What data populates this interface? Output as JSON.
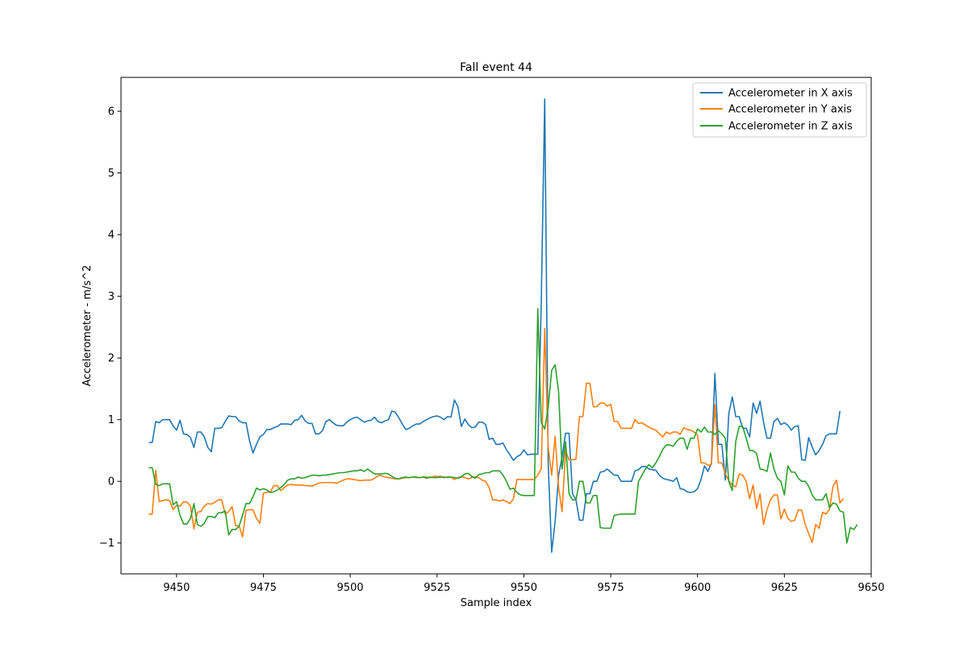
{
  "chart_data": {
    "type": "line",
    "title": "Fall event 44",
    "xlabel": "Sample index",
    "ylabel": "Accelerometer - m/s^2",
    "xlim": [
      9434,
      9650
    ],
    "ylim": [
      -1.5,
      6.55
    ],
    "xticks": [
      9450,
      9475,
      9500,
      9525,
      9550,
      9575,
      9600,
      9625,
      9650
    ],
    "yticks": [
      -1,
      0,
      1,
      2,
      3,
      4,
      5,
      6
    ],
    "ytick_labels": [
      "−1",
      "0",
      "1",
      "2",
      "3",
      "4",
      "5",
      "6"
    ],
    "legend_position": "top-right",
    "x_start": 9442,
    "series": [
      {
        "name": "Accelerometer in X axis",
        "color": "#1f77b4",
        "values": [
          0.63,
          0.63,
          0.97,
          0.95,
          1.0,
          1.0,
          1.0,
          0.9,
          0.83,
          0.99,
          0.77,
          0.76,
          0.71,
          0.55,
          0.8,
          0.8,
          0.72,
          0.55,
          0.48,
          0.86,
          0.86,
          0.87,
          0.97,
          1.06,
          1.05,
          1.05,
          0.98,
          0.95,
          0.95,
          0.66,
          0.46,
          0.6,
          0.72,
          0.76,
          0.84,
          0.84,
          0.87,
          0.89,
          0.93,
          0.93,
          0.93,
          0.92,
          0.99,
          1.0,
          1.07,
          0.98,
          0.94,
          0.94,
          0.77,
          0.77,
          0.82,
          0.97,
          1.0,
          0.95,
          0.91,
          0.9,
          0.9,
          0.96,
          1.0,
          1.03,
          1.04,
          1.0,
          0.96,
          0.98,
          0.99,
          1.04,
          0.97,
          0.95,
          0.98,
          1.0,
          1.14,
          1.12,
          1.03,
          0.93,
          0.84,
          0.86,
          0.9,
          0.93,
          0.93,
          0.97,
          1.0,
          1.03,
          1.05,
          1.06,
          1.04,
          1.0,
          1.05,
          1.04,
          1.32,
          1.21,
          0.89,
          1.01,
          0.92,
          0.87,
          0.88,
          0.96,
          0.96,
          0.92,
          0.68,
          0.7,
          0.6,
          0.6,
          0.62,
          0.51,
          0.43,
          0.34,
          0.4,
          0.43,
          0.51,
          0.43,
          0.44,
          0.44,
          0.44,
          2.9,
          6.2,
          0.3,
          -1.15,
          -0.65,
          0.1,
          0.4,
          0.78,
          0.78,
          -0.2,
          -0.3,
          -0.63,
          -0.63,
          -0.2,
          -0.2,
          0.0,
          0.0,
          0.15,
          0.16,
          0.2,
          0.15,
          0.1,
          0.1,
          0.0,
          0.0,
          0.0,
          0.0,
          0.17,
          0.19,
          0.24,
          0.24,
          0.2,
          0.19,
          0.18,
          0.1,
          0.05,
          0.03,
          0.02,
          0.0,
          0.06,
          -0.12,
          -0.13,
          -0.17,
          -0.18,
          -0.17,
          -0.12,
          0.03,
          0.25,
          0.16,
          0.3,
          1.75,
          0.6,
          0.6,
          0.02,
          1.1,
          1.37,
          1.05,
          1.05,
          0.86,
          0.86,
          0.72,
          1.27,
          1.1,
          1.3,
          0.96,
          0.7,
          0.7,
          0.97,
          1.02,
          0.92,
          0.95,
          0.91,
          0.83,
          0.89,
          0.9,
          0.35,
          0.34,
          0.71,
          0.56,
          0.43,
          0.5,
          0.6,
          0.74,
          0.77,
          0.77,
          0.77,
          1.14
        ]
      },
      {
        "name": "Accelerometer in Y axis",
        "color": "#ff7f0e",
        "values": [
          -0.53,
          -0.53,
          0.18,
          -0.33,
          -0.31,
          -0.3,
          -0.31,
          -0.46,
          -0.39,
          -0.4,
          -0.33,
          -0.34,
          -0.4,
          -0.77,
          -0.5,
          -0.49,
          -0.4,
          -0.36,
          -0.37,
          -0.34,
          -0.3,
          -0.3,
          -0.53,
          -0.49,
          -0.41,
          -0.72,
          -0.72,
          -0.9,
          -0.47,
          -0.46,
          -0.46,
          -0.6,
          -0.68,
          -0.19,
          -0.18,
          -0.17,
          -0.07,
          -0.07,
          -0.15,
          -0.1,
          -0.06,
          -0.05,
          -0.06,
          -0.06,
          -0.06,
          -0.07,
          -0.07,
          -0.08,
          -0.05,
          -0.03,
          -0.02,
          -0.02,
          -0.02,
          -0.02,
          -0.03,
          -0.01,
          0.02,
          0.04,
          0.04,
          0.03,
          0.02,
          0.01,
          0.02,
          0.02,
          0.02,
          0.05,
          0.09,
          0.09,
          0.07,
          0.06,
          0.05,
          0.04,
          0.04,
          0.05,
          0.06,
          0.06,
          0.07,
          0.06,
          0.06,
          0.07,
          0.07,
          0.06,
          0.08,
          0.08,
          0.08,
          0.07,
          0.06,
          0.07,
          0.03,
          0.06,
          0.08,
          0.06,
          0.04,
          0.06,
          0.07,
          0.06,
          0.02,
          0.0,
          -0.1,
          -0.3,
          -0.3,
          -0.32,
          -0.3,
          -0.33,
          -0.36,
          -0.28,
          0.03,
          0.03,
          0.03,
          0.03,
          0.03,
          0.03,
          0.1,
          0.2,
          2.48,
          0.55,
          0.1,
          0.73,
          -0.1,
          -0.49,
          0.5,
          0.35,
          0.35,
          0.36,
          1.05,
          1.05,
          1.59,
          1.59,
          1.21,
          1.21,
          1.27,
          1.27,
          1.22,
          1.25,
          0.97,
          0.97,
          0.86,
          0.86,
          0.86,
          0.86,
          1.0,
          0.94,
          0.95,
          0.91,
          0.88,
          0.85,
          0.83,
          0.77,
          0.72,
          0.8,
          0.77,
          0.8,
          0.8,
          0.76,
          0.87,
          0.84,
          0.83,
          0.8,
          0.75,
          0.3,
          0.3,
          0.26,
          0.27,
          1.24,
          0.3,
          0.3,
          0.12,
          0.01,
          -0.06,
          -0.09,
          0.12,
          0.1,
          0.0,
          -0.28,
          -0.06,
          -0.44,
          -0.2,
          -0.7,
          -0.46,
          -0.3,
          -0.22,
          -0.22,
          -0.61,
          -0.45,
          -0.6,
          -0.65,
          -0.63,
          -0.46,
          -0.47,
          -0.7,
          -0.85,
          -0.99,
          -0.7,
          -0.76,
          -0.5,
          -0.53,
          -0.45,
          -0.08,
          0.02,
          -0.35,
          -0.28
        ]
      },
      {
        "name": "Accelerometer in Z axis",
        "color": "#2ca02c",
        "values": [
          0.22,
          0.22,
          -0.05,
          -0.07,
          -0.04,
          -0.04,
          -0.04,
          -0.38,
          -0.33,
          -0.55,
          -0.69,
          -0.69,
          -0.6,
          -0.36,
          -0.7,
          -0.73,
          -0.68,
          -0.57,
          -0.57,
          -0.59,
          -0.51,
          -0.51,
          -0.48,
          -0.87,
          -0.78,
          -0.78,
          -0.73,
          -0.55,
          -0.36,
          -0.36,
          -0.25,
          -0.11,
          -0.14,
          -0.12,
          -0.14,
          -0.18,
          -0.17,
          -0.14,
          -0.1,
          -0.05,
          0.02,
          0.04,
          0.04,
          0.07,
          0.05,
          0.06,
          0.08,
          0.1,
          0.1,
          0.09,
          0.1,
          0.1,
          0.11,
          0.12,
          0.13,
          0.14,
          0.14,
          0.15,
          0.16,
          0.17,
          0.17,
          0.19,
          0.16,
          0.2,
          0.16,
          0.12,
          0.12,
          0.12,
          0.13,
          0.12,
          0.08,
          0.05,
          0.04,
          0.06,
          0.07,
          0.06,
          0.07,
          0.07,
          0.06,
          0.07,
          0.05,
          0.07,
          0.06,
          0.06,
          0.07,
          0.06,
          0.07,
          0.07,
          0.06,
          0.05,
          0.07,
          0.12,
          0.13,
          0.08,
          0.05,
          0.11,
          0.12,
          0.14,
          0.14,
          0.17,
          0.17,
          0.17,
          0.1,
          0.0,
          -0.13,
          -0.11,
          -0.18,
          -0.22,
          -0.23,
          -0.23,
          -0.23,
          -0.23,
          2.8,
          0.95,
          0.85,
          1.2,
          1.8,
          1.89,
          1.45,
          0.2,
          0.64,
          -0.2,
          -0.3,
          -0.3,
          0.0,
          0.0,
          -0.35,
          -0.35,
          -0.23,
          -0.23,
          -0.75,
          -0.76,
          -0.76,
          -0.76,
          -0.55,
          -0.54,
          -0.53,
          -0.53,
          -0.53,
          -0.53,
          -0.53,
          0.0,
          0.1,
          0.2,
          0.27,
          0.22,
          0.3,
          0.4,
          0.52,
          0.59,
          0.59,
          0.57,
          0.65,
          0.7,
          0.7,
          0.52,
          0.7,
          0.7,
          0.85,
          0.8,
          0.88,
          0.8,
          0.8,
          0.76,
          0.82,
          0.77,
          0.7,
          0.0,
          -0.15,
          0.65,
          0.89,
          0.89,
          0.7,
          0.5,
          0.5,
          0.45,
          0.2,
          0.19,
          0.16,
          0.46,
          0.2,
          0.05,
          0.0,
          -0.22,
          0.25,
          0.15,
          0.15,
          0.05,
          0.0,
          0.0,
          -0.08,
          -0.22,
          -0.3,
          -0.3,
          -0.3,
          -0.2,
          -0.43,
          -0.35,
          -0.37,
          -0.48,
          -0.5,
          -1.0,
          -0.75,
          -0.78,
          -0.7
        ]
      }
    ]
  }
}
